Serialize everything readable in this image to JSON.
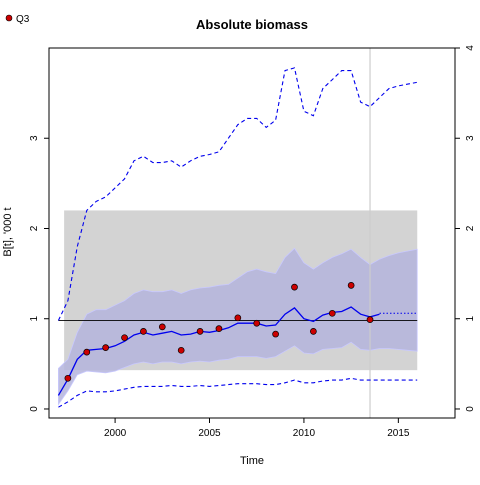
{
  "chart_data": {
    "type": "line",
    "title": "Absolute biomass",
    "xlabel": "Time",
    "ylabel": "B[t], '000 t",
    "xlim": [
      1996.5,
      2018.0
    ],
    "ylim": [
      -0.1,
      4.0
    ],
    "x_ticks": [
      2000,
      2005,
      2010,
      2015
    ],
    "y_ticks": [
      0,
      1,
      2,
      3
    ],
    "y_ticks_right": [
      0,
      1,
      2,
      3,
      4
    ],
    "grid": false,
    "legend_position": "top-left",
    "colors": {
      "estimate": "#0000ee",
      "ci_fill": "#b4b4dc",
      "ci_inner": "#c8c8ff",
      "reference_box": "#d3d3d3",
      "observations": "#cc0000",
      "vline": "#cccccc",
      "hline": "#000000"
    },
    "reference_box": {
      "x": [
        1997.3,
        2016.0
      ],
      "y": [
        0.43,
        2.2
      ]
    },
    "reference_line_y": 0.98,
    "vline_x": 2013.5,
    "series": [
      {
        "role": "estimate",
        "x": [
          1997,
          1997.5,
          1998,
          1998.5,
          1999,
          1999.5,
          2000,
          2000.5,
          2001,
          2001.5,
          2002,
          2002.5,
          2003,
          2003.5,
          2004,
          2004.5,
          2005,
          2005.5,
          2006,
          2006.5,
          2007,
          2007.5,
          2008,
          2008.5,
          2009,
          2009.5,
          2010,
          2010.5,
          2011,
          2011.5,
          2012,
          2012.5,
          2013,
          2013.5,
          2014
        ],
        "values": [
          0.15,
          0.33,
          0.55,
          0.65,
          0.66,
          0.67,
          0.7,
          0.75,
          0.82,
          0.85,
          0.82,
          0.84,
          0.86,
          0.82,
          0.83,
          0.86,
          0.85,
          0.87,
          0.9,
          0.95,
          0.95,
          0.95,
          0.92,
          0.93,
          1.05,
          1.12,
          1.0,
          0.97,
          1.04,
          1.07,
          1.08,
          1.13,
          1.05,
          1.02,
          1.05
        ]
      },
      {
        "role": "projection",
        "x": [
          2014,
          2015,
          2016
        ],
        "values": [
          1.06,
          1.06,
          1.06
        ]
      },
      {
        "role": "ci_upper",
        "x": [
          1997,
          1997.5,
          1998,
          1998.5,
          1999,
          1999.5,
          2000,
          2000.5,
          2001,
          2001.5,
          2002,
          2002.5,
          2003,
          2003.5,
          2004,
          2004.5,
          2005,
          2005.5,
          2006,
          2006.5,
          2007,
          2007.5,
          2008,
          2008.5,
          2009,
          2009.5,
          2010,
          2010.5,
          2011,
          2011.5,
          2012,
          2012.5,
          2013,
          2013.5,
          2014,
          2014.5,
          2015,
          2015.5,
          2016
        ],
        "values": [
          0.45,
          0.55,
          0.85,
          1.05,
          1.1,
          1.1,
          1.15,
          1.2,
          1.28,
          1.32,
          1.3,
          1.3,
          1.32,
          1.28,
          1.32,
          1.34,
          1.35,
          1.37,
          1.38,
          1.45,
          1.52,
          1.55,
          1.52,
          1.5,
          1.68,
          1.78,
          1.62,
          1.55,
          1.62,
          1.68,
          1.72,
          1.77,
          1.68,
          1.6,
          1.66,
          1.7,
          1.73,
          1.75,
          1.77
        ]
      },
      {
        "role": "ci_lower",
        "x": [
          1997,
          1997.5,
          1998,
          1998.5,
          1999,
          1999.5,
          2000,
          2000.5,
          2001,
          2001.5,
          2002,
          2002.5,
          2003,
          2003.5,
          2004,
          2004.5,
          2005,
          2005.5,
          2006,
          2006.5,
          2007,
          2007.5,
          2008,
          2008.5,
          2009,
          2009.5,
          2010,
          2010.5,
          2011,
          2011.5,
          2012,
          2012.5,
          2013,
          2013.5,
          2014,
          2014.5,
          2015,
          2015.5,
          2016
        ],
        "values": [
          0.05,
          0.2,
          0.38,
          0.42,
          0.41,
          0.4,
          0.42,
          0.46,
          0.5,
          0.52,
          0.5,
          0.52,
          0.52,
          0.5,
          0.52,
          0.53,
          0.52,
          0.54,
          0.55,
          0.58,
          0.58,
          0.58,
          0.56,
          0.58,
          0.64,
          0.7,
          0.62,
          0.61,
          0.66,
          0.67,
          0.68,
          0.74,
          0.66,
          0.65,
          0.67,
          0.67,
          0.66,
          0.65,
          0.64
        ]
      },
      {
        "role": "outer_upper",
        "x": [
          1997,
          1997.5,
          1998,
          1998.5,
          1999,
          1999.5,
          2000,
          2000.5,
          2001,
          2001.5,
          2002,
          2002.5,
          2003,
          2003.5,
          2004,
          2004.5,
          2005,
          2005.5,
          2006,
          2006.5,
          2007,
          2007.5,
          2008,
          2008.5,
          2009,
          2009.5,
          2010,
          2010.5,
          2011,
          2011.5,
          2012,
          2012.5,
          2013,
          2013.5,
          2014,
          2014.5,
          2015,
          2015.5,
          2016
        ],
        "values": [
          0.98,
          1.2,
          1.8,
          2.2,
          2.3,
          2.35,
          2.45,
          2.55,
          2.75,
          2.8,
          2.73,
          2.73,
          2.75,
          2.68,
          2.75,
          2.8,
          2.82,
          2.85,
          3.0,
          3.15,
          3.22,
          3.22,
          3.12,
          3.2,
          3.75,
          3.78,
          3.3,
          3.25,
          3.55,
          3.65,
          3.75,
          3.75,
          3.4,
          3.35,
          3.45,
          3.55,
          3.58,
          3.6,
          3.62
        ]
      },
      {
        "role": "outer_lower",
        "x": [
          1997,
          1997.5,
          1998,
          1998.5,
          1999,
          1999.5,
          2000,
          2000.5,
          2001,
          2001.5,
          2002,
          2002.5,
          2003,
          2003.5,
          2004,
          2004.5,
          2005,
          2005.5,
          2006,
          2006.5,
          2007,
          2007.5,
          2008,
          2008.5,
          2009,
          2009.5,
          2010,
          2010.5,
          2011,
          2011.5,
          2012,
          2012.5,
          2013,
          2013.5,
          2014,
          2014.5,
          2015,
          2015.5,
          2016
        ],
        "values": [
          0.02,
          0.08,
          0.15,
          0.2,
          0.19,
          0.19,
          0.2,
          0.22,
          0.24,
          0.25,
          0.25,
          0.25,
          0.26,
          0.25,
          0.25,
          0.26,
          0.25,
          0.26,
          0.27,
          0.28,
          0.28,
          0.28,
          0.27,
          0.27,
          0.29,
          0.32,
          0.29,
          0.29,
          0.31,
          0.32,
          0.32,
          0.34,
          0.32,
          0.32,
          0.32,
          0.32,
          0.32,
          0.32,
          0.32
        ]
      }
    ],
    "observations": {
      "name": "Q3",
      "x": [
        1997.5,
        1998.5,
        1999.5,
        2000.5,
        2001.5,
        2002.5,
        2003.5,
        2004.5,
        2005.5,
        2006.5,
        2007.5,
        2008.5,
        2009.5,
        2010.5,
        2011.5,
        2012.5,
        2013.5
      ],
      "values": [
        0.34,
        0.63,
        0.68,
        0.79,
        0.86,
        0.91,
        0.65,
        0.86,
        0.89,
        1.01,
        0.95,
        0.83,
        1.35,
        0.86,
        1.06,
        1.37,
        0.99
      ]
    }
  }
}
